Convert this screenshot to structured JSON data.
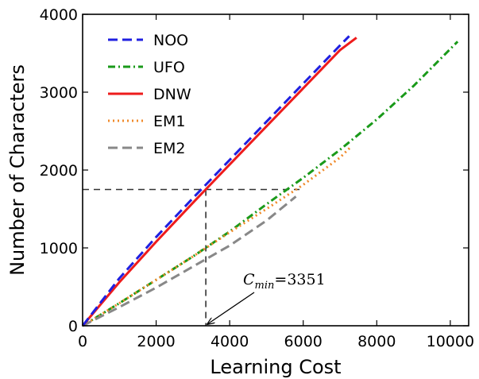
{
  "chart_data": {
    "type": "line",
    "xlabel": "Learning Cost",
    "ylabel": "Number of Characters",
    "xlim": [
      0,
      10500
    ],
    "ylim": [
      0,
      4000
    ],
    "xticks": [
      0,
      2000,
      4000,
      6000,
      8000,
      10000
    ],
    "yticks": [
      0,
      1000,
      2000,
      3000,
      4000
    ],
    "grid": false,
    "legend_position": "top-left",
    "series": [
      {
        "name": "NOO",
        "color": "#1f1fe0",
        "dash": "dashed",
        "x": [
          0,
          1000,
          2000,
          3000,
          4000,
          5000,
          6000,
          7000,
          7250
        ],
        "y": [
          0,
          610,
          1140,
          1640,
          2130,
          2620,
          3110,
          3600,
          3720
        ]
      },
      {
        "name": "UFO",
        "color": "#1a9a1a",
        "dash": "dashdot",
        "x": [
          0,
          1000,
          2000,
          3000,
          4000,
          5000,
          6000,
          7000,
          8000,
          9000,
          10200
        ],
        "y": [
          0,
          290,
          590,
          890,
          1210,
          1560,
          1900,
          2260,
          2650,
          3080,
          3650
        ]
      },
      {
        "name": "DNW",
        "color": "#ee1c1c",
        "dash": "solid",
        "x": [
          0,
          1000,
          2000,
          3000,
          4000,
          5000,
          6000,
          7000,
          7450
        ],
        "y": [
          0,
          560,
          1080,
          1580,
          2070,
          2560,
          3050,
          3540,
          3700
        ]
      },
      {
        "name": "EM1",
        "color": "#f08a2a",
        "dash": "dotted",
        "x": [
          0,
          1000,
          2000,
          3000,
          4000,
          5000,
          6000,
          7000,
          7300
        ],
        "y": [
          0,
          290,
          590,
          890,
          1200,
          1500,
          1810,
          2160,
          2300
        ]
      },
      {
        "name": "EM2",
        "color": "#888888",
        "dash": "dashed",
        "x": [
          0,
          1000,
          2000,
          3000,
          4000,
          5000,
          5800
        ],
        "y": [
          0,
          240,
          490,
          760,
          1030,
          1350,
          1660
        ]
      }
    ],
    "reference_lines": {
      "horizontal_y": 1750,
      "horizontal_x_end": 5900,
      "vertical_x": 3351
    },
    "annotation": {
      "symbol": "C",
      "subscript": "min",
      "text": "=3351",
      "x": 3351,
      "y": 0
    }
  }
}
